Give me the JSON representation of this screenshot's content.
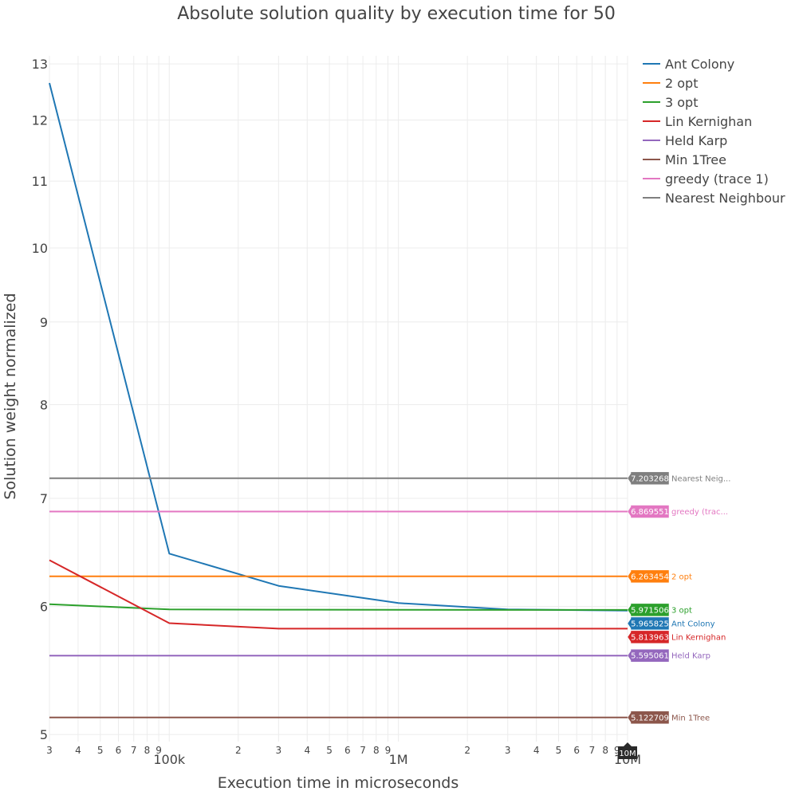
{
  "chart_data": {
    "type": "line",
    "title": "Absolute solution quality by execution time for 50",
    "xlabel": "Execution time in microseconds",
    "ylabel": "Solution weight normalized",
    "x_scale": "log",
    "y_scale": "log",
    "xlim": [
      30000,
      10000000
    ],
    "ylim": [
      4.95,
      13.15
    ],
    "x_tick_labels": [
      {
        "value": 30000,
        "label": "3"
      },
      {
        "value": 40000,
        "label": "4"
      },
      {
        "value": 50000,
        "label": "5"
      },
      {
        "value": 60000,
        "label": "6"
      },
      {
        "value": 70000,
        "label": "7"
      },
      {
        "value": 80000,
        "label": "8"
      },
      {
        "value": 90000,
        "label": "9"
      },
      {
        "value": 100000,
        "label": "100k"
      },
      {
        "value": 200000,
        "label": "2"
      },
      {
        "value": 300000,
        "label": "3"
      },
      {
        "value": 400000,
        "label": "4"
      },
      {
        "value": 500000,
        "label": "5"
      },
      {
        "value": 600000,
        "label": "6"
      },
      {
        "value": 700000,
        "label": "7"
      },
      {
        "value": 800000,
        "label": "8"
      },
      {
        "value": 900000,
        "label": "9"
      },
      {
        "value": 1000000,
        "label": "1M"
      },
      {
        "value": 2000000,
        "label": "2"
      },
      {
        "value": 3000000,
        "label": "3"
      },
      {
        "value": 4000000,
        "label": "4"
      },
      {
        "value": 5000000,
        "label": "5"
      },
      {
        "value": 6000000,
        "label": "6"
      },
      {
        "value": 7000000,
        "label": "7"
      },
      {
        "value": 8000000,
        "label": "8"
      },
      {
        "value": 9000000,
        "label": "9"
      },
      {
        "value": 10000000,
        "label": "10M"
      }
    ],
    "y_tick_labels": [
      {
        "value": 5,
        "label": "5"
      },
      {
        "value": 6,
        "label": "6"
      },
      {
        "value": 7,
        "label": "7"
      },
      {
        "value": 8,
        "label": "8"
      },
      {
        "value": 9,
        "label": "9"
      },
      {
        "value": 10,
        "label": "10"
      },
      {
        "value": 11,
        "label": "11"
      },
      {
        "value": 12,
        "label": "12"
      },
      {
        "value": 13,
        "label": "13"
      }
    ],
    "series": [
      {
        "name": "Ant Colony",
        "color": "#1f77b4",
        "x": [
          30000,
          100000,
          300000,
          1000000,
          3000000,
          10000000
        ],
        "y": [
          12.65,
          6.47,
          6.18,
          6.03,
          5.975,
          5.965825
        ],
        "hover_value": "5.965825",
        "hover_name": "Ant Colony"
      },
      {
        "name": "2 opt",
        "color": "#ff7f0e",
        "x": [
          30000,
          10000000
        ],
        "y": [
          6.263454,
          6.263454
        ],
        "hover_value": "6.263454",
        "hover_name": "2 opt"
      },
      {
        "name": "3 opt",
        "color": "#2ca02c",
        "x": [
          30000,
          100000,
          300000,
          1000000,
          3000000,
          10000000
        ],
        "y": [
          6.02,
          5.975,
          5.973,
          5.972,
          5.971,
          5.971506
        ],
        "hover_value": "5.971506",
        "hover_name": "3 opt"
      },
      {
        "name": "Lin Kernighan",
        "color": "#d62728",
        "x": [
          30000,
          100000,
          300000,
          1000000,
          3000000,
          10000000
        ],
        "y": [
          6.41,
          5.86,
          5.814,
          5.814,
          5.814,
          5.813963
        ],
        "hover_value": "5.813963",
        "hover_name": "Lin Kernighan"
      },
      {
        "name": "Held Karp",
        "color": "#9467bd",
        "x": [
          30000,
          10000000
        ],
        "y": [
          5.595061,
          5.595061
        ],
        "hover_value": "5.595061",
        "hover_name": "Held Karp"
      },
      {
        "name": "Min 1Tree",
        "color": "#8c564b",
        "x": [
          30000,
          10000000
        ],
        "y": [
          5.122709,
          5.122709
        ],
        "hover_value": "5.122709",
        "hover_name": "Min 1Tree"
      },
      {
        "name": "greedy (trace 1)",
        "color": "#e377c2",
        "x": [
          30000,
          10000000
        ],
        "y": [
          6.869551,
          6.869551
        ],
        "hover_value": "6.869551",
        "hover_name": "greedy (trac..."
      },
      {
        "name": "Nearest Neighbour",
        "color": "#7f7f7f",
        "x": [
          30000,
          10000000
        ],
        "y": [
          7.203268,
          7.203268
        ],
        "hover_value": "7.203268",
        "hover_name": "Nearest Neig..."
      }
    ],
    "spike_label": "10M",
    "grid": true,
    "legend_position": "top-right"
  }
}
